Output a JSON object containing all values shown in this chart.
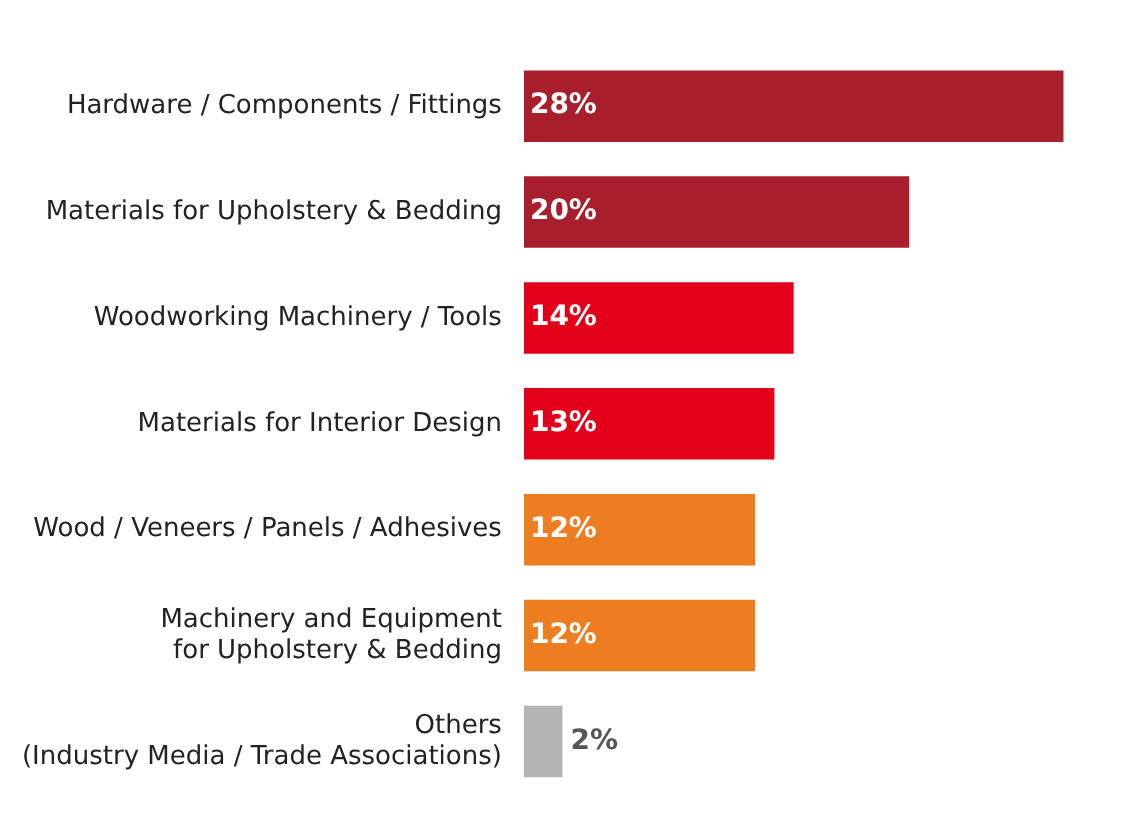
{
  "chart_data": {
    "type": "bar",
    "orientation": "horizontal",
    "categories": [
      "Hardware / Components / Fittings",
      "Materials for Upholstery & Bedding",
      "Woodworking Machinery / Tools",
      "Materials for Interior Design",
      "Wood / Veneers / Panels / Adhesives",
      "Machinery and Equipment\nfor Upholstery & Bedding",
      "Others\n(Industry Media / Trade Associations)"
    ],
    "values": [
      28,
      20,
      14,
      13,
      12,
      12,
      2
    ],
    "colors": [
      "#a81e2d",
      "#a81e2d",
      "#e2001a",
      "#e2001a",
      "#ee7d22",
      "#ee7d22",
      "#b4b4b4"
    ],
    "value_labels": [
      "28%",
      "20%",
      "14%",
      "13%",
      "12%",
      "12%",
      "2%"
    ],
    "grid": false,
    "legend": false
  }
}
